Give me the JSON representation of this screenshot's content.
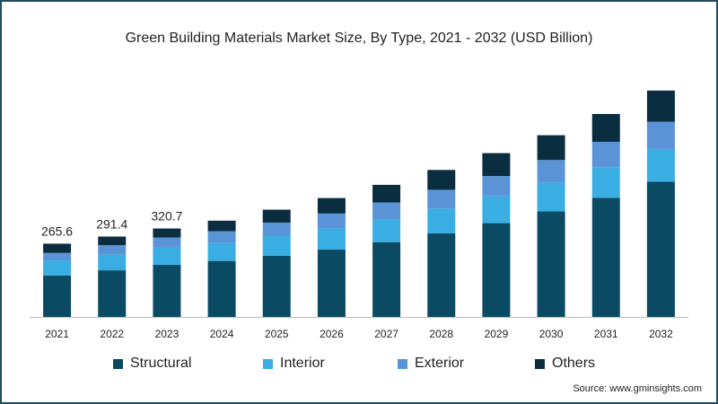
{
  "chart_data": {
    "type": "bar",
    "stacked": true,
    "title": "Green Building Materials Market Size, By Type, 2021 - 2032 (USD Billion)",
    "categories": [
      "2021",
      "2022",
      "2023",
      "2024",
      "2025",
      "2026",
      "2027",
      "2028",
      "2029",
      "2030",
      "2031",
      "2032"
    ],
    "series": [
      {
        "name": "Structural",
        "color": "#0b4a63",
        "values": [
          150,
          169,
          189,
          203,
          222,
          244,
          271,
          303,
          340,
          383,
          432,
          490
        ]
      },
      {
        "name": "Interior",
        "color": "#3aaee3",
        "values": [
          55,
          57,
          62,
          66,
          71,
          77,
          84,
          90,
          97,
          104,
          111,
          119
        ]
      },
      {
        "name": "Exterior",
        "color": "#5b94d6",
        "values": [
          27,
          34,
          37,
          42,
          49,
          54,
          60,
          68,
          74,
          82,
          92,
          99
        ]
      },
      {
        "name": "Others",
        "color": "#0b2d40",
        "values": [
          33.6,
          31.4,
          32.7,
          38,
          47,
          56,
          64,
          72,
          83,
          90,
          101,
          113
        ]
      }
    ],
    "data_labels": {
      "0": "265.6",
      "1": "291.4",
      "2": "320.7"
    },
    "ylim": [
      0,
      870
    ],
    "grid": false,
    "legend_position": "bottom"
  },
  "source": "Source: www.gminsights.com"
}
